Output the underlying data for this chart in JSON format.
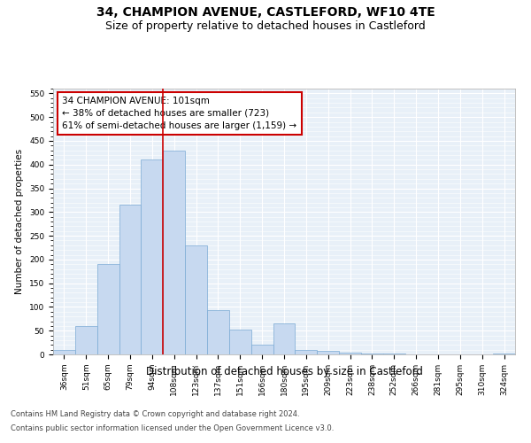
{
  "title": "34, CHAMPION AVENUE, CASTLEFORD, WF10 4TE",
  "subtitle": "Size of property relative to detached houses in Castleford",
  "xlabel": "Distribution of detached houses by size in Castleford",
  "ylabel": "Number of detached properties",
  "categories": [
    "36sqm",
    "51sqm",
    "65sqm",
    "79sqm",
    "94sqm",
    "108sqm",
    "123sqm",
    "137sqm",
    "151sqm",
    "166sqm",
    "180sqm",
    "195sqm",
    "209sqm",
    "223sqm",
    "238sqm",
    "252sqm",
    "266sqm",
    "281sqm",
    "295sqm",
    "310sqm",
    "324sqm"
  ],
  "values": [
    10,
    60,
    190,
    315,
    410,
    430,
    230,
    93,
    52,
    20,
    65,
    10,
    7,
    3,
    1,
    1,
    0,
    0,
    0,
    0,
    1
  ],
  "bar_color": "#c7d9f0",
  "bar_edge_color": "#7aaad4",
  "property_line_color": "#cc0000",
  "annotation_text": "34 CHAMPION AVENUE: 101sqm\n← 38% of detached houses are smaller (723)\n61% of semi-detached houses are larger (1,159) →",
  "annotation_box_color": "#ffffff",
  "annotation_box_edge": "#cc0000",
  "ylim": [
    0,
    560
  ],
  "yticks": [
    0,
    50,
    100,
    150,
    200,
    250,
    300,
    350,
    400,
    450,
    500,
    550
  ],
  "footnote1": "Contains HM Land Registry data © Crown copyright and database right 2024.",
  "footnote2": "Contains public sector information licensed under the Open Government Licence v3.0.",
  "bg_color": "#e8f0f8",
  "fig_bg_color": "#ffffff",
  "grid_color": "#ffffff",
  "title_fontsize": 10,
  "subtitle_fontsize": 9,
  "xlabel_fontsize": 8.5,
  "ylabel_fontsize": 7.5,
  "tick_fontsize": 6.5,
  "annot_fontsize": 7.5,
  "footnote_fontsize": 6
}
